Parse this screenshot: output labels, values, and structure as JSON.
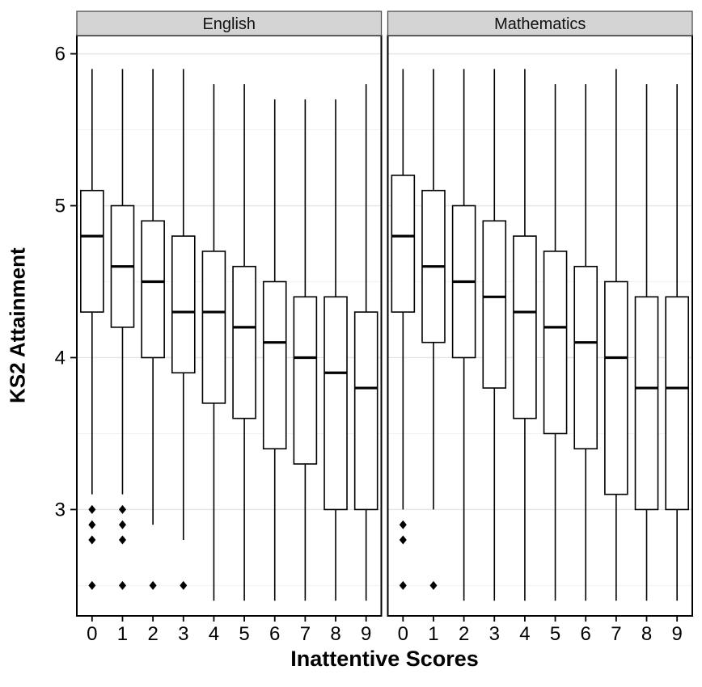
{
  "chart_data": {
    "type": "boxplot",
    "title": "",
    "xlabel": "Inattentive Scores",
    "ylabel": "KS2 Attainment",
    "x_categories": [
      "0",
      "1",
      "2",
      "3",
      "4",
      "5",
      "6",
      "7",
      "8",
      "9"
    ],
    "y_ticks": [
      3,
      4,
      5,
      6
    ],
    "y_minor_ticks": [
      2.5,
      3.5,
      4.5,
      5.5
    ],
    "ylim": [
      2.3,
      6.12
    ],
    "grid": true,
    "legend": "none",
    "colors": {
      "box_fill": "#ffffff",
      "box_stroke": "#000000",
      "strip_fill": "#d4d4d4",
      "strip_stroke": "#4d4d4d",
      "grid_major": "#e4e4e4",
      "grid_minor": "#f2f2f2",
      "panel_border": "#000000"
    },
    "facets": [
      {
        "label": "English",
        "boxes": [
          {
            "x": "0",
            "low": 3.1,
            "q1": 4.3,
            "median": 4.8,
            "q3": 5.1,
            "high": 5.9,
            "outliers": [
              3.0,
              2.9,
              2.8,
              2.5
            ]
          },
          {
            "x": "1",
            "low": 3.1,
            "q1": 4.2,
            "median": 4.6,
            "q3": 5.0,
            "high": 5.9,
            "outliers": [
              3.0,
              2.9,
              2.8,
              2.5
            ]
          },
          {
            "x": "2",
            "low": 2.9,
            "q1": 4.0,
            "median": 4.5,
            "q3": 4.9,
            "high": 5.9,
            "outliers": [
              2.5
            ]
          },
          {
            "x": "3",
            "low": 2.8,
            "q1": 3.9,
            "median": 4.3,
            "q3": 4.8,
            "high": 5.9,
            "outliers": [
              2.5
            ]
          },
          {
            "x": "4",
            "low": 2.4,
            "q1": 3.7,
            "median": 4.3,
            "q3": 4.7,
            "high": 5.8,
            "outliers": []
          },
          {
            "x": "5",
            "low": 2.4,
            "q1": 3.6,
            "median": 4.2,
            "q3": 4.6,
            "high": 5.8,
            "outliers": []
          },
          {
            "x": "6",
            "low": 2.4,
            "q1": 3.4,
            "median": 4.1,
            "q3": 4.5,
            "high": 5.7,
            "outliers": []
          },
          {
            "x": "7",
            "low": 2.4,
            "q1": 3.3,
            "median": 4.0,
            "q3": 4.4,
            "high": 5.7,
            "outliers": []
          },
          {
            "x": "8",
            "low": 2.4,
            "q1": 3.0,
            "median": 3.9,
            "q3": 4.4,
            "high": 5.7,
            "outliers": []
          },
          {
            "x": "9",
            "low": 2.4,
            "q1": 3.0,
            "median": 3.8,
            "q3": 4.3,
            "high": 5.8,
            "outliers": []
          }
        ]
      },
      {
        "label": "Mathematics",
        "boxes": [
          {
            "x": "0",
            "low": 3.0,
            "q1": 4.3,
            "median": 4.8,
            "q3": 5.2,
            "high": 5.9,
            "outliers": [
              2.9,
              2.8,
              2.5
            ]
          },
          {
            "x": "1",
            "low": 3.0,
            "q1": 4.1,
            "median": 4.6,
            "q3": 5.1,
            "high": 5.9,
            "outliers": [
              2.5
            ]
          },
          {
            "x": "2",
            "low": 2.4,
            "q1": 4.0,
            "median": 4.5,
            "q3": 5.0,
            "high": 5.9,
            "outliers": []
          },
          {
            "x": "3",
            "low": 2.4,
            "q1": 3.8,
            "median": 4.4,
            "q3": 4.9,
            "high": 5.9,
            "outliers": []
          },
          {
            "x": "4",
            "low": 2.4,
            "q1": 3.6,
            "median": 4.3,
            "q3": 4.8,
            "high": 5.9,
            "outliers": []
          },
          {
            "x": "5",
            "low": 2.4,
            "q1": 3.5,
            "median": 4.2,
            "q3": 4.7,
            "high": 5.8,
            "outliers": []
          },
          {
            "x": "6",
            "low": 2.4,
            "q1": 3.4,
            "median": 4.1,
            "q3": 4.6,
            "high": 5.8,
            "outliers": []
          },
          {
            "x": "7",
            "low": 2.4,
            "q1": 3.1,
            "median": 4.0,
            "q3": 4.5,
            "high": 5.9,
            "outliers": []
          },
          {
            "x": "8",
            "low": 2.4,
            "q1": 3.0,
            "median": 3.8,
            "q3": 4.4,
            "high": 5.8,
            "outliers": []
          },
          {
            "x": "9",
            "low": 2.4,
            "q1": 3.0,
            "median": 3.8,
            "q3": 4.4,
            "high": 5.8,
            "outliers": []
          }
        ]
      }
    ]
  }
}
